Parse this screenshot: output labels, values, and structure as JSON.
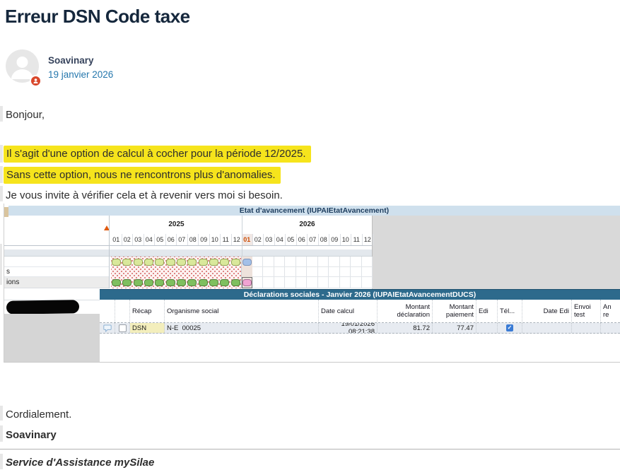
{
  "colors": {
    "highlight": "#f6e41c",
    "teal-bar": "#2d6a8c",
    "avancement-bar": "#cfe0ed",
    "pill-light": "#d9e89b",
    "pill-green": "#7fbf5f",
    "pill-blue": "#a3c0e8",
    "pill-pink": "#f0a3d2",
    "current-month": "#cc4a00",
    "checkbox-blue": "#3a7bd5"
  },
  "page": {
    "title": "Erreur DSN Code taxe"
  },
  "post": {
    "author": "Soavinary",
    "date": "19 janvier 2026",
    "paragraphs": {
      "greeting": "Bonjour,",
      "highlight1": "Il s'agit d'une option de calcul à cocher pour la période 12/2025.",
      "highlight2": "Sans cette option, nous ne rencontrons plus d'anomalies.",
      "invite": "Je vous invite à vérifier cela et à revenir vers moi si besoin.",
      "closing": "Cordialement.",
      "signature_name": "Soavinary",
      "signature_role": "Service d'Assistance mySilae"
    }
  },
  "screenshot": {
    "avancement": {
      "title": "Etat d'avancement (IUPAIEtatAvancement)",
      "year_left": "2025",
      "year_right": "2026",
      "months": [
        "01",
        "02",
        "03",
        "04",
        "05",
        "06",
        "07",
        "08",
        "09",
        "10",
        "11",
        "12"
      ],
      "current_month": "01",
      "row_label_s": "s",
      "row_label_ions": "ions"
    },
    "ducs": {
      "title": "Déclarations sociales - Janvier 2026 (IUPAIEtatAvancementDUCS)",
      "columns": [
        "Récap",
        "Organisme social",
        "Date calcul",
        "Montant déclaration",
        "Montant paiement",
        "Edi",
        "Tél...",
        "Date Edi",
        "Envoi test",
        "An re"
      ],
      "row": {
        "recap": "DSN",
        "organisme": "N-E  00025",
        "date_calcul": "19/01/2026 08:21:38",
        "montant_declaration": "81.72",
        "montant_paiement": "77.47",
        "tel_checked": "✓"
      }
    }
  }
}
